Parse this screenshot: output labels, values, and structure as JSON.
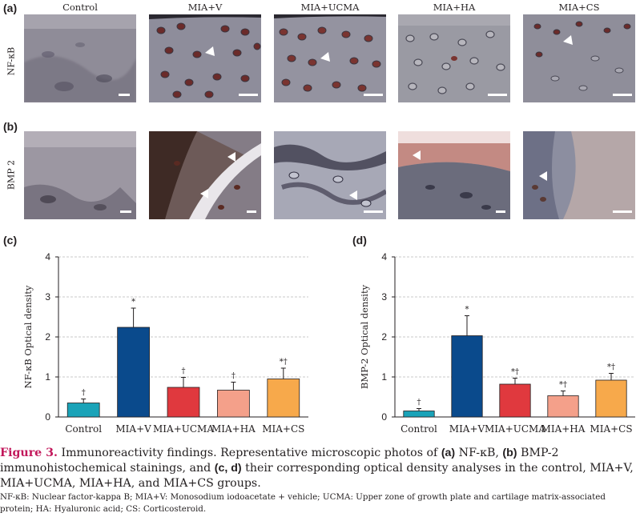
{
  "panels": {
    "a": "(a)",
    "b": "(b)",
    "c": "(c)",
    "d": "(d)"
  },
  "column_labels": [
    "Control",
    "MIA+V",
    "MIA+UCMA",
    "MIA+HA",
    "MIA+CS"
  ],
  "row_labels": [
    "NF-κB",
    "BMP 2"
  ],
  "colors": {
    "Control": "#1aa3b8",
    "MIA+V": "#0a4a8c",
    "MIA+UCMA": "#e0393e",
    "MIA+HA": "#f4a08a",
    "MIA+CS": "#f7a94b",
    "figure_label": "#c2185b"
  },
  "chart_data": [
    {
      "type": "bar",
      "panel": "(c)",
      "ylabel": "NF-κB Optical density",
      "ylim": [
        0,
        4
      ],
      "yticks": [
        "0",
        "1",
        "2",
        "3",
        "4"
      ],
      "categories": [
        "Control",
        "MIA+V",
        "MIA+UCMA",
        "MIA+HA",
        "MIA+CS"
      ],
      "values": [
        0.35,
        2.24,
        0.74,
        0.67,
        0.95
      ],
      "errors": [
        0.1,
        0.48,
        0.25,
        0.2,
        0.27
      ],
      "annotations": [
        "†",
        "*",
        "†",
        "†",
        "*†"
      ],
      "grid": true
    },
    {
      "type": "bar",
      "panel": "(d)",
      "ylabel": "BMP-2 Optical density",
      "ylim": [
        0,
        4
      ],
      "yticks": [
        "0",
        "1",
        "2",
        "3",
        "4"
      ],
      "categories": [
        "Control",
        "MIA+V",
        "MIA+UCMA",
        "MIA+HA",
        "MIA+CS"
      ],
      "values": [
        0.15,
        2.03,
        0.82,
        0.53,
        0.92
      ],
      "errors": [
        0.06,
        0.5,
        0.15,
        0.12,
        0.17
      ],
      "annotations": [
        "†",
        "*",
        "*†",
        "*†",
        "*†"
      ],
      "grid": true
    }
  ],
  "caption": {
    "fig_label": "Figure 3.",
    "text_1": " Immunoreactivity findings. Representative microscopic photos of ",
    "bold_a": "(a)",
    "text_2": " NF-κB, ",
    "bold_b": "(b)",
    "text_3": " BMP-2 immunohistochemical stainings, and ",
    "bold_cd": "(c, d)",
    "text_4": " their corresponding optical density analyses in the control, MIA+V, MIA+UCMA, MIA+HA, and MIA+CS groups."
  },
  "footnote": "NF-κB: Nuclear factor-kappa B; MIA+V: Monosodium iodoacetate + vehicle; UCMA: Upper zone of growth plate and cartilage matrix-associated protein; HA: Hyaluronic acid; CS: Corticosteroid."
}
